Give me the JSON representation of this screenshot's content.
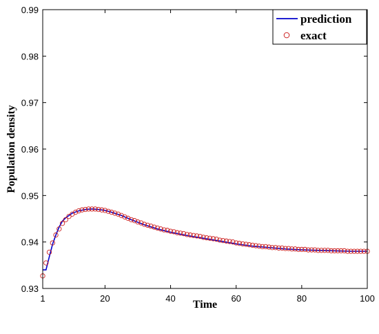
{
  "chart_data": {
    "type": "line",
    "title": "",
    "xlabel": "Time",
    "ylabel": "Population density",
    "xlim": [
      1,
      100
    ],
    "ylim": [
      0.93,
      0.99
    ],
    "x_ticks": [
      1,
      20,
      40,
      60,
      80,
      100
    ],
    "y_ticks": [
      0.93,
      0.94,
      0.95,
      0.96,
      0.97,
      0.98,
      0.99
    ],
    "grid": false,
    "legend_position": "top-right",
    "series": [
      {
        "name": "prediction",
        "style": "line",
        "color": "#0000cc",
        "x": [
          1,
          2,
          3,
          4,
          5,
          6,
          7,
          8,
          10,
          12,
          14,
          16,
          18,
          20,
          22,
          25,
          28,
          32,
          36,
          40,
          45,
          50,
          55,
          60,
          65,
          70,
          75,
          80,
          85,
          90,
          95,
          100
        ],
        "y": [
          0.934,
          0.934,
          0.9368,
          0.9395,
          0.9415,
          0.9432,
          0.9445,
          0.9452,
          0.9462,
          0.9467,
          0.947,
          0.9471,
          0.947,
          0.9468,
          0.9464,
          0.9457,
          0.9448,
          0.9437,
          0.9428,
          0.9421,
          0.9414,
          0.9408,
          0.9402,
          0.9396,
          0.9391,
          0.9388,
          0.9385,
          0.9383,
          0.9382,
          0.9381,
          0.938,
          0.938
        ]
      },
      {
        "name": "exact",
        "style": "markers",
        "marker": "circle",
        "color": "#cc2222",
        "x": [
          1,
          2,
          3,
          4,
          5,
          6,
          7,
          8,
          9,
          10,
          11,
          12,
          13,
          14,
          15,
          16,
          17,
          18,
          19,
          20,
          21,
          22,
          23,
          24,
          25,
          26,
          27,
          28,
          29,
          30,
          31,
          32,
          33,
          34,
          35,
          36,
          37,
          38,
          39,
          40,
          41,
          42,
          43,
          44,
          45,
          46,
          47,
          48,
          49,
          50,
          51,
          52,
          53,
          54,
          55,
          56,
          57,
          58,
          59,
          60,
          61,
          62,
          63,
          64,
          65,
          66,
          67,
          68,
          69,
          70,
          71,
          72,
          73,
          74,
          75,
          76,
          77,
          78,
          79,
          80,
          81,
          82,
          83,
          84,
          85,
          86,
          87,
          88,
          89,
          90,
          91,
          92,
          93,
          94,
          95,
          96,
          97,
          98,
          99,
          100
        ],
        "y": [
          0.9327,
          0.9355,
          0.9378,
          0.9398,
          0.9415,
          0.9428,
          0.944,
          0.9448,
          0.9455,
          0.946,
          0.9464,
          0.9467,
          0.9469,
          0.947,
          0.9471,
          0.9471,
          0.9471,
          0.947,
          0.9469,
          0.9468,
          0.9466,
          0.9464,
          0.9462,
          0.946,
          0.9457,
          0.9454,
          0.9451,
          0.9448,
          0.9446,
          0.9443,
          0.9441,
          0.9438,
          0.9436,
          0.9434,
          0.9432,
          0.943,
          0.9428,
          0.9426,
          0.9425,
          0.9423,
          0.9422,
          0.942,
          0.9419,
          0.9418,
          0.9416,
          0.9415,
          0.9414,
          0.9413,
          0.9412,
          0.941,
          0.9409,
          0.9408,
          0.9407,
          0.9406,
          0.9404,
          0.9403,
          0.9402,
          0.9401,
          0.94,
          0.9398,
          0.9397,
          0.9396,
          0.9395,
          0.9394,
          0.9393,
          0.9392,
          0.9391,
          0.939,
          0.939,
          0.9389,
          0.9388,
          0.9388,
          0.9387,
          0.9387,
          0.9386,
          0.9386,
          0.9385,
          0.9385,
          0.9384,
          0.9384,
          0.9384,
          0.9383,
          0.9383,
          0.9383,
          0.9382,
          0.9382,
          0.9382,
          0.9382,
          0.9381,
          0.9381,
          0.9381,
          0.9381,
          0.9381,
          0.938,
          0.938,
          0.938,
          0.938,
          0.938,
          0.938,
          0.938
        ]
      }
    ]
  }
}
